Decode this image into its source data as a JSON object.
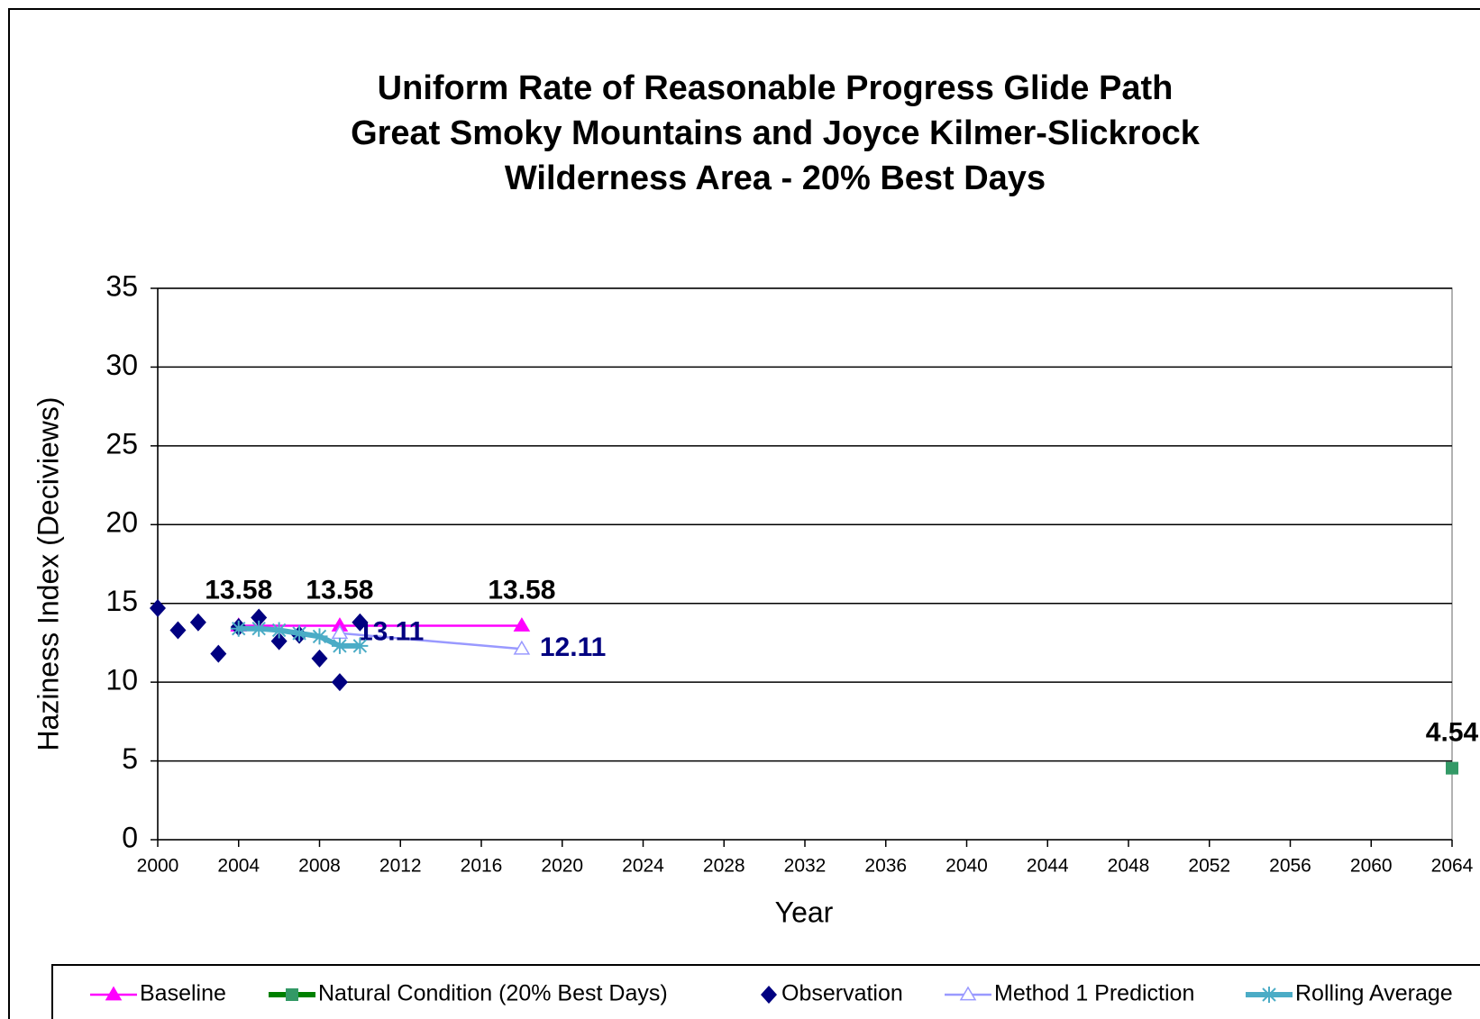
{
  "chart_data": {
    "type": "line",
    "title": [
      "Uniform Rate of Reasonable Progress Glide Path",
      "Great Smoky Mountains and Joyce Kilmer-Slickrock",
      "Wilderness Area - 20% Best Days"
    ],
    "x_label": "Year",
    "y_label": "Haziness Index (Deciviews)",
    "xlim": [
      2000,
      2064
    ],
    "xticks": [
      2000,
      2004,
      2008,
      2012,
      2016,
      2020,
      2024,
      2028,
      2032,
      2036,
      2040,
      2044,
      2048,
      2052,
      2056,
      2060,
      2064
    ],
    "ylim": [
      0,
      35
    ],
    "yticks": [
      0,
      5,
      10,
      15,
      20,
      25,
      30,
      35
    ],
    "grid": true,
    "legend": "bottom",
    "series": [
      {
        "name": "Baseline",
        "color": "#ff00ff",
        "marker": "triangle",
        "line": true,
        "data_labels": "above",
        "x": [
          2004,
          2009,
          2018
        ],
        "values": [
          13.58,
          13.58,
          13.58
        ]
      },
      {
        "name": "Natural Condition (20% Best Days)",
        "color": "#339966",
        "marker": "square",
        "line": true,
        "data_labels": "above",
        "x": [
          2064
        ],
        "values": [
          4.54
        ]
      },
      {
        "name": "Observation",
        "color": "#000080",
        "marker": "diamond",
        "line": false,
        "x": [
          2000,
          2001,
          2002,
          2003,
          2004,
          2005,
          2006,
          2007,
          2008,
          2009,
          2010
        ],
        "values": [
          14.7,
          13.3,
          13.8,
          11.8,
          13.5,
          14.1,
          12.6,
          13.0,
          11.5,
          10.0,
          13.8
        ]
      },
      {
        "name": "Method 1 Prediction",
        "color": "#9999ff",
        "marker": "open-triangle",
        "line": true,
        "data_labels": "right",
        "x": [
          2009,
          2018
        ],
        "values": [
          13.11,
          12.11
        ]
      },
      {
        "name": "Rolling Average",
        "color": "#4bacc6",
        "marker": "asterisk",
        "line": true,
        "thick": true,
        "x": [
          2004,
          2005,
          2006,
          2007,
          2008,
          2009,
          2010
        ],
        "values": [
          13.4,
          13.4,
          13.3,
          13.1,
          12.9,
          12.3,
          12.3
        ]
      }
    ]
  }
}
